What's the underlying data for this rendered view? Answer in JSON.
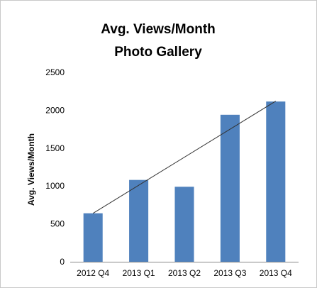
{
  "chart_data": {
    "type": "bar",
    "title": "Avg. Views/Month",
    "subtitle": "Photo Gallery",
    "xlabel": "",
    "ylabel": "Avg. Views/Month",
    "categories": [
      "2012 Q4",
      "2013 Q1",
      "2013 Q2",
      "2013 Q3",
      "2013 Q4"
    ],
    "values": [
      640,
      1080,
      990,
      1940,
      2115
    ],
    "ylim": [
      0,
      2500
    ],
    "yticks": [
      0,
      500,
      1000,
      1500,
      2000,
      2500
    ],
    "grid": false,
    "legend": "none",
    "trendline": {
      "type": "linear",
      "start": 640,
      "end": 2120
    },
    "bar_color": "#4f81bd",
    "trend_color": "#333333"
  }
}
